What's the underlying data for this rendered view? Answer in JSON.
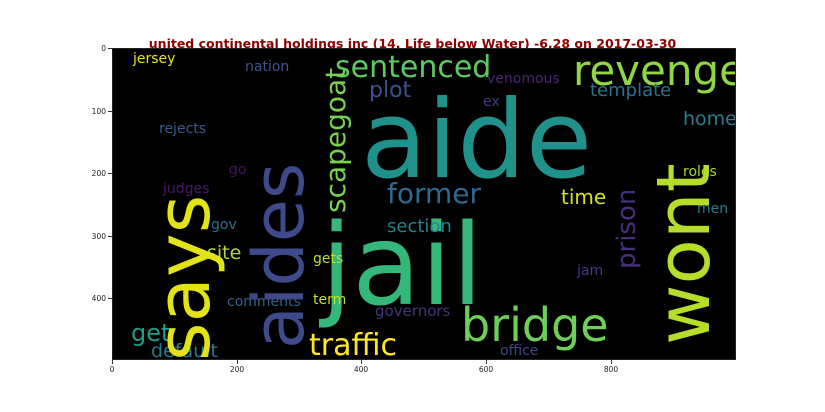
{
  "title": "united continental holdings inc (14. Life below Water) -6.28 on 2017-03-30",
  "x_ticks": [
    "0",
    "200",
    "400",
    "600",
    "800"
  ],
  "y_ticks": [
    "0",
    "100",
    "200",
    "300",
    "400"
  ],
  "words": [
    {
      "text": "aide",
      "color": "#21918c"
    },
    {
      "text": "jail",
      "color": "#35b779"
    },
    {
      "text": "says",
      "color": "#e2e418"
    },
    {
      "text": "aides",
      "color": "#3e4a89"
    },
    {
      "text": "wont",
      "color": "#b5de2b"
    },
    {
      "text": "revenge",
      "color": "#90d743"
    },
    {
      "text": "bridge",
      "color": "#6ece58"
    },
    {
      "text": "sentenced",
      "color": "#5ec962"
    },
    {
      "text": "scapegoat",
      "color": "#7ad151"
    },
    {
      "text": "former",
      "color": "#31688e"
    },
    {
      "text": "traffic",
      "color": "#fde725"
    },
    {
      "text": "prison",
      "color": "#472f7d"
    },
    {
      "text": "plot",
      "color": "#3b528b"
    },
    {
      "text": "template",
      "color": "#2c728e"
    },
    {
      "text": "home",
      "color": "#287d8e"
    },
    {
      "text": "get",
      "color": "#1f9e89"
    },
    {
      "text": "section",
      "color": "#26828e"
    },
    {
      "text": "time",
      "color": "#d2e21b"
    },
    {
      "text": "site",
      "color": "#addc30"
    },
    {
      "text": "default",
      "color": "#2a788e"
    },
    {
      "text": "governors",
      "color": "#46327e"
    },
    {
      "text": "office",
      "color": "#3f4788"
    },
    {
      "text": "comments",
      "color": "#33638d"
    },
    {
      "text": "term",
      "color": "#c2df23"
    },
    {
      "text": "gets",
      "color": "#bddf26"
    },
    {
      "text": "jam",
      "color": "#443983"
    },
    {
      "text": "roles",
      "color": "#a2da37"
    },
    {
      "text": "men",
      "color": "#277f8e"
    },
    {
      "text": "gov",
      "color": "#2d708e"
    },
    {
      "text": "judges",
      "color": "#48186a"
    },
    {
      "text": "go",
      "color": "#471063"
    },
    {
      "text": "rejects",
      "color": "#365c8d"
    },
    {
      "text": "jersey",
      "color": "#e7e419"
    },
    {
      "text": "nation",
      "color": "#3a548c"
    },
    {
      "text": "venomous",
      "color": "#482475"
    },
    {
      "text": "ex",
      "color": "#443a83"
    }
  ]
}
